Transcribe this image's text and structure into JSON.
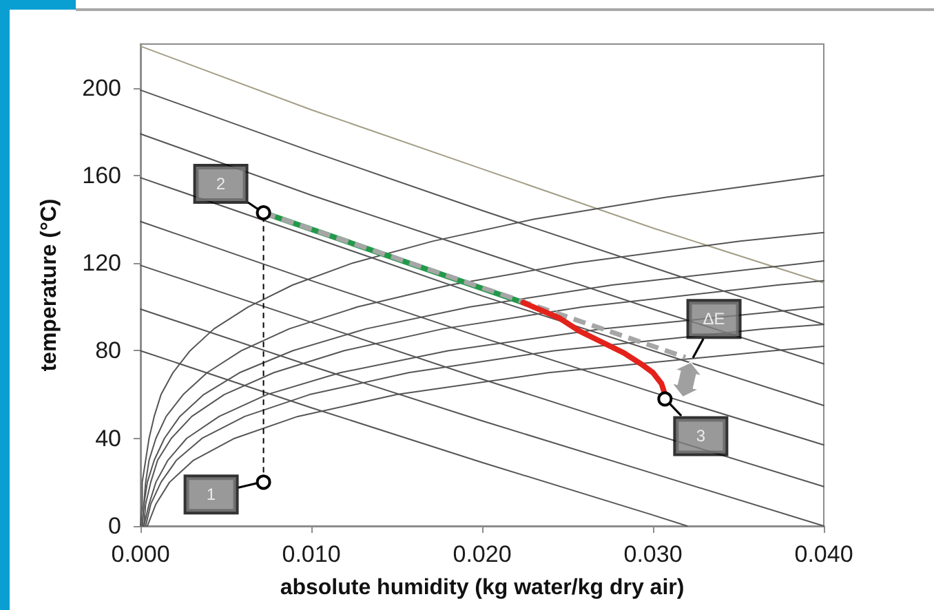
{
  "chart_data": {
    "type": "line",
    "xlabel": "absolute humidity (kg water/kg dry air)",
    "ylabel": "temperature (°C)",
    "xlim": [
      0,
      0.04
    ],
    "xticks": [
      {
        "value": 0,
        "label": "0.000"
      },
      {
        "value": 0.01,
        "label": "0.010"
      },
      {
        "value": 0.02,
        "label": "0.020"
      },
      {
        "value": 0.03,
        "label": "0.030"
      },
      {
        "value": 0.04,
        "label": "0.040"
      }
    ],
    "ylim": [
      0,
      220
    ],
    "yticks": [
      0,
      40,
      80,
      120,
      160,
      200
    ],
    "x": [
      0,
      0.01,
      0.02,
      0.03,
      0.04
    ],
    "series": [
      {
        "color": "#a39e86",
        "values": [
          219,
          190,
          163,
          136,
          111
        ]
      },
      {
        "color": "#555555",
        "values": [
          199,
          171,
          144,
          118,
          92
        ]
      },
      {
        "color": "#555555",
        "values": [
          179,
          151,
          125,
          99,
          74
        ]
      },
      {
        "color": "#555555",
        "values": [
          159,
          132,
          105,
          80,
          55
        ]
      },
      {
        "color": "#555555",
        "values": [
          139,
          112,
          86,
          61,
          37
        ]
      },
      {
        "color": "#555555",
        "values": [
          119,
          93,
          67,
          42,
          18
        ]
      },
      {
        "color": "#555555",
        "values": [
          99,
          73,
          48,
          24,
          0
        ]
      },
      {
        "color": "#555555",
        "x": [
          0,
          0.01,
          0.02,
          0.03,
          0.032
        ],
        "values": [
          80,
          54,
          29,
          5,
          0
        ]
      },
      {
        "color": "#555555",
        "x": [
          0,
          0.0001,
          0.0001,
          0.0003,
          0.0005,
          0.0008,
          0.0012,
          0.0019,
          0.0029,
          0.0043,
          0.0063,
          0.0089,
          0.0124,
          0.0171,
          0.023,
          0.0307,
          0.04
        ],
        "values": [
          0,
          10,
          20,
          30,
          40,
          50,
          60,
          70,
          80,
          90,
          100,
          110,
          120,
          130,
          140,
          150,
          160
        ]
      },
      {
        "color": "#555555",
        "x": [
          0.0001,
          0.0002,
          0.0003,
          0.0005,
          0.0009,
          0.0015,
          0.0025,
          0.0039,
          0.0059,
          0.0087,
          0.0127,
          0.0181,
          0.0254,
          0.0351,
          0.04
        ],
        "values": [
          0,
          10,
          20,
          30,
          40,
          50,
          60,
          70,
          80,
          90,
          100,
          110,
          120,
          130,
          134
        ]
      },
      {
        "color": "#555555",
        "x": [
          0.0001,
          0.0002,
          0.0004,
          0.0008,
          0.0014,
          0.0023,
          0.0037,
          0.0058,
          0.0089,
          0.0132,
          0.0193,
          0.0276,
          0.0389,
          0.04
        ],
        "values": [
          0,
          10,
          20,
          30,
          40,
          50,
          60,
          70,
          80,
          90,
          100,
          110,
          120,
          121
        ]
      },
      {
        "color": "#555555",
        "x": [
          0.0002,
          0.0003,
          0.0006,
          0.001,
          0.0018,
          0.003,
          0.0049,
          0.0078,
          0.0119,
          0.0177,
          0.0259,
          0.0373,
          0.04
        ],
        "values": [
          0,
          10,
          20,
          30,
          40,
          50,
          60,
          70,
          80,
          90,
          100,
          110,
          112
        ]
      },
      {
        "color": "#555555",
        "x": [
          0.0002,
          0.0005,
          0.0009,
          0.0016,
          0.0027,
          0.0046,
          0.0074,
          0.0117,
          0.018,
          0.027,
          0.04
        ],
        "values": [
          0,
          10,
          20,
          30,
          40,
          50,
          60,
          70,
          80,
          90,
          100
        ]
      },
      {
        "color": "#555555",
        "x": [
          0.0003,
          0.0006,
          0.0012,
          0.0021,
          0.0036,
          0.0061,
          0.0099,
          0.0157,
          0.0242,
          0.0365,
          0.04
        ],
        "values": [
          0,
          10,
          20,
          30,
          40,
          50,
          60,
          70,
          80,
          90,
          92
        ]
      },
      {
        "color": "#555555",
        "x": [
          0.0004,
          0.0009,
          0.0017,
          0.0031,
          0.0055,
          0.0092,
          0.015,
          0.0239,
          0.037,
          0.04
        ],
        "values": [
          0,
          10,
          20,
          30,
          40,
          50,
          60,
          70,
          80,
          82
        ]
      },
      {
        "color": "#000000",
        "line_style": "dashed",
        "x": [
          0.0072,
          0.0072
        ],
        "values": [
          20,
          143
        ]
      },
      {
        "color": "#23994a",
        "x": [
          0.0072,
          0.0224
        ],
        "values": [
          143,
          102
        ]
      },
      {
        "color": "#a6a6a6",
        "line_style": "dashed",
        "x": [
          0.0072,
          0.0319
        ],
        "values": [
          143,
          77
        ]
      },
      {
        "color": "#e3221b",
        "x": [
          0.0224,
          0.0245,
          0.0257,
          0.027,
          0.0283,
          0.0293,
          0.03,
          0.0305,
          0.0307
        ],
        "values": [
          102,
          95,
          89,
          84,
          79,
          74,
          70,
          65,
          60
        ]
      },
      {
        "type": "scatter",
        "color": "#000000",
        "marker": "circle",
        "x": [
          0.0072,
          0.0072,
          0.0307
        ],
        "values": [
          20,
          143,
          58
        ]
      }
    ],
    "annotations": [
      {
        "text": "1",
        "x": 0.0072,
        "y": 20
      },
      {
        "text": "2",
        "x": 0.0072,
        "y": 143
      },
      {
        "text": "3",
        "x": 0.0307,
        "y": 58
      },
      {
        "text": "ΔE",
        "x": 0.0322,
        "y": 75
      }
    ]
  }
}
